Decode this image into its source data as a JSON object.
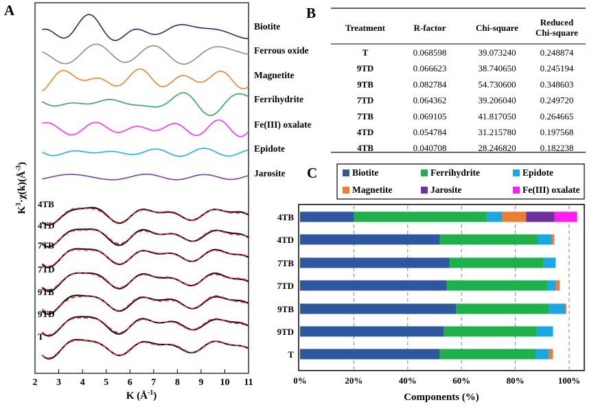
{
  "panels": {
    "a": "A",
    "b": "B",
    "c": "C"
  },
  "chart_data": [
    {
      "type": "line",
      "panel": "A",
      "xlabel": "K (Å⁻¹)",
      "ylabel": "K³·χ(k)(Å⁻³)",
      "xlim": [
        2,
        11
      ],
      "xticks": [
        "2",
        "3",
        "4",
        "5",
        "6",
        "7",
        "8",
        "9",
        "10",
        "11"
      ],
      "reference_series": [
        {
          "name": "Biotite",
          "color": "#1f2f66"
        },
        {
          "name": "Ferrous oxide",
          "color": "#8c8c8c"
        },
        {
          "name": "Magnetite",
          "color": "#e8833a"
        },
        {
          "name": "Ferrihydrite",
          "color": "#2eab53"
        },
        {
          "name": "Fe(III) oxalate",
          "color": "#ff2bff"
        },
        {
          "name": "Epidote",
          "color": "#1ab2e6"
        },
        {
          "name": "Jarosite",
          "color": "#7a3fa0"
        }
      ],
      "fit_series": [
        "4TB",
        "4TD",
        "7TB",
        "7TD",
        "9TB",
        "9TD",
        "T"
      ],
      "fit_styles": {
        "data": "#000000",
        "fit": "#e8262b"
      }
    },
    {
      "type": "table",
      "panel": "B",
      "columns": [
        "Treatment",
        "R-factor",
        "Chi-square",
        "Reduced\nChi-square"
      ],
      "column_lines": [
        [
          "Treatment"
        ],
        [
          "R-factor"
        ],
        [
          "Chi-square"
        ],
        [
          "Reduced",
          "Chi-square"
        ]
      ],
      "rows": [
        [
          "T",
          "0.068598",
          "39.073240",
          "0.248874"
        ],
        [
          "9TD",
          "0.066623",
          "38.740650",
          "0.245194"
        ],
        [
          "9TB",
          "0.082784",
          "54.730600",
          "0.348603"
        ],
        [
          "7TD",
          "0.064362",
          "39.206040",
          "0.249720"
        ],
        [
          "7TB",
          "0.069105",
          "41.817050",
          "0.264665"
        ],
        [
          "4TD",
          "0.054784",
          "31.215780",
          "0.197568"
        ],
        [
          "4TB",
          "0.040708",
          "28.246820",
          "0.182238"
        ]
      ]
    },
    {
      "type": "bar",
      "orientation": "horizontal",
      "stacked": true,
      "panel": "C",
      "xlabel": "Components (%)",
      "xlim": [
        0,
        105
      ],
      "xticks": [
        "0%",
        "20%",
        "40%",
        "60%",
        "80%",
        "100%"
      ],
      "legend": [
        {
          "name": "Biotite",
          "color": "#2f57a0"
        },
        {
          "name": "Ferrihydrite",
          "color": "#1db04b"
        },
        {
          "name": "Epidote",
          "color": "#1aa7e6"
        },
        {
          "name": "Magnetite",
          "color": "#ed7d31"
        },
        {
          "name": "Jarosite",
          "color": "#7030a0"
        },
        {
          "name": "Fe(III) oxalate",
          "color": "#ff1cf5"
        }
      ],
      "categories": [
        "4TB",
        "4TD",
        "7TB",
        "7TD",
        "9TB",
        "9TD",
        "T"
      ],
      "series": [
        {
          "name": "Biotite",
          "values": [
            20,
            52,
            55.5,
            54.5,
            58,
            53.5,
            52
          ]
        },
        {
          "name": "Ferrihydrite",
          "values": [
            49.5,
            36.5,
            35,
            37.5,
            34.5,
            34.5,
            35.5
          ]
        },
        {
          "name": "Epidote",
          "values": [
            5.5,
            5,
            4.5,
            3,
            6,
            6,
            5
          ]
        },
        {
          "name": "Magnetite",
          "values": [
            9,
            1,
            0,
            1.5,
            0.5,
            0,
            1.5
          ]
        },
        {
          "name": "Jarosite",
          "values": [
            10.5,
            0,
            0,
            0,
            0,
            0,
            0
          ]
        },
        {
          "name": "Fe(III) oxalate",
          "values": [
            8.5,
            0,
            0,
            0,
            0,
            0,
            0
          ]
        }
      ],
      "grid": "vertical dashed"
    }
  ]
}
